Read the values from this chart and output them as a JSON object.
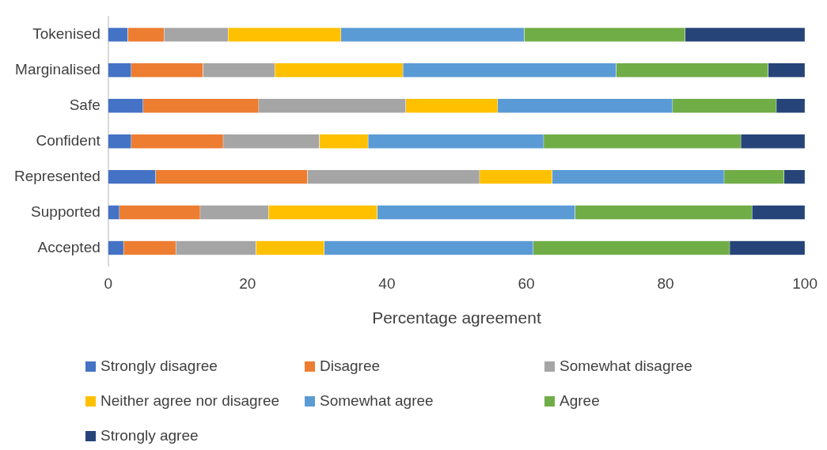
{
  "chart_data": {
    "type": "bar",
    "orientation": "horizontal",
    "stacked": true,
    "categories": [
      "Tokenised",
      "Marginalised",
      "Safe",
      "Confident",
      "Represented",
      "Supported",
      "Accepted"
    ],
    "series": [
      {
        "name": "Strongly disagree",
        "color": "#4472c4",
        "values": [
          2.8,
          3.3,
          5.0,
          3.3,
          6.8,
          1.6,
          2.2
        ]
      },
      {
        "name": "Disagree",
        "color": "#ed7d31",
        "values": [
          5.2,
          10.3,
          16.6,
          13.2,
          21.8,
          11.6,
          7.5
        ]
      },
      {
        "name": "Somewhat disagree",
        "color": "#a5a5a5",
        "values": [
          9.2,
          10.3,
          21.1,
          13.8,
          24.7,
          9.8,
          11.5
        ]
      },
      {
        "name": "Neither agree nor disagree",
        "color": "#ffc000",
        "values": [
          16.2,
          18.4,
          13.2,
          7.0,
          10.4,
          15.6,
          9.8
        ]
      },
      {
        "name": "Somewhat agree",
        "color": "#5b9bd5",
        "values": [
          26.3,
          30.6,
          25.1,
          25.2,
          24.7,
          28.4,
          30.0
        ]
      },
      {
        "name": "Agree",
        "color": "#70ad47",
        "values": [
          23.1,
          21.8,
          14.9,
          28.3,
          8.6,
          25.4,
          28.2
        ]
      },
      {
        "name": "Strongly agree",
        "color": "#264478",
        "values": [
          17.2,
          5.3,
          4.1,
          9.2,
          3.0,
          7.6,
          10.8
        ]
      }
    ],
    "xlim": [
      0,
      100
    ],
    "xticks": [
      0,
      20,
      40,
      60,
      80,
      100
    ],
    "xlabel": "Percentage agreement",
    "grid": false,
    "legend": "bottom"
  }
}
